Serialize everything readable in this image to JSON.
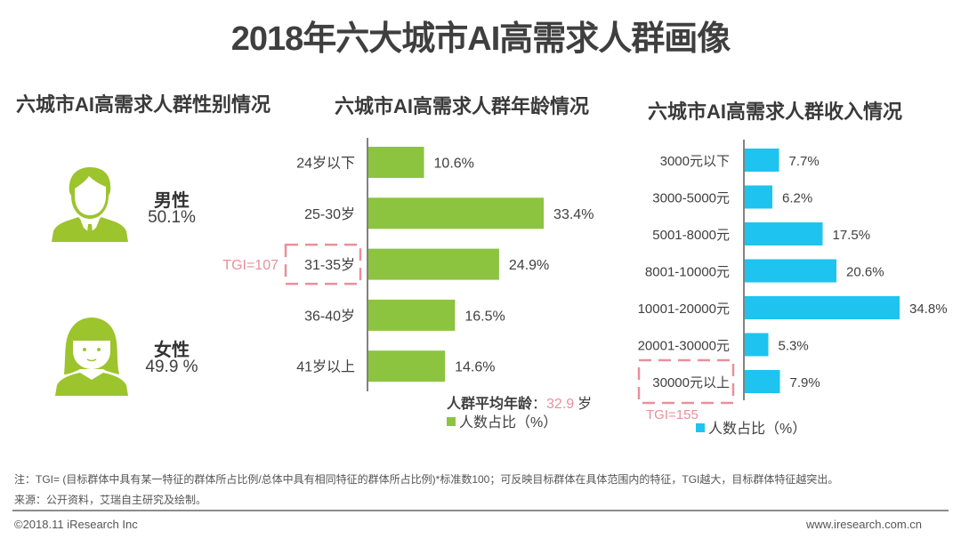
{
  "title": "2018年六大城市AI高需求人群画像",
  "gender": {
    "section_title": "六城市AI高需求人群性别情况",
    "items": [
      {
        "label": "男性",
        "value": "50.1%",
        "icon": "male-person-icon"
      },
      {
        "label": "女性",
        "value": "49.9 %",
        "icon": "female-person-icon"
      }
    ],
    "icon_color": "#9cc42c"
  },
  "chart_data": [
    {
      "type": "bar",
      "orientation": "horizontal",
      "title": "六城市AI高需求人群年龄情况",
      "categories": [
        "24岁以下",
        "25-30岁",
        "31-35岁",
        "36-40岁",
        "41岁以上"
      ],
      "values": [
        10.6,
        33.4,
        24.9,
        16.5,
        14.6
      ],
      "value_labels": [
        "10.6%",
        "33.4%",
        "24.9%",
        "16.5%",
        "14.6%"
      ],
      "color": "#8cc43f",
      "legend": "人数占比（%）",
      "legend_placement": "bottom-right",
      "highlight": {
        "category": "31-35岁",
        "annotation": "TGI=107"
      },
      "avg_label": "人群平均年龄",
      "avg_sep": "：",
      "avg_value": "32.9",
      "avg_unit": "岁",
      "xlim": [
        0,
        35
      ],
      "grid": false
    },
    {
      "type": "bar",
      "orientation": "horizontal",
      "title": "六城市AI高需求人群收入情况",
      "categories": [
        "3000元以下",
        "3000-5000元",
        "5001-8000元",
        "8001-10000元",
        "10001-20000元",
        "20001-30000元",
        "30000元以上"
      ],
      "values": [
        7.7,
        6.2,
        17.5,
        20.6,
        34.8,
        5.3,
        7.9
      ],
      "value_labels": [
        "7.7%",
        "6.2%",
        "17.5%",
        "20.6%",
        "34.8%",
        "5.3%",
        "7.9%"
      ],
      "color": "#1ec3ef",
      "legend": "人数占比（%）",
      "legend_placement": "bottom",
      "highlight": {
        "category": "30000元以上",
        "annotation": "TGI=155"
      },
      "xlim": [
        0,
        35
      ],
      "grid": false
    }
  ],
  "colors": {
    "highlight": "#e8909c",
    "avg_value": "#e8909c"
  },
  "footer": {
    "note": "注：TGI= (目标群体中具有某一特征的群体所占比例/总体中具有相同特征的群体所占比例)*标准数100；可反映目标群体在具体范围内的特征，TGI越大，目标群体特征越突出。",
    "source": "来源：公开资料，艾瑞自主研究及绘制。",
    "copyright": "©2018.11 iResearch Inc",
    "website": "www.iresearch.com.cn"
  }
}
